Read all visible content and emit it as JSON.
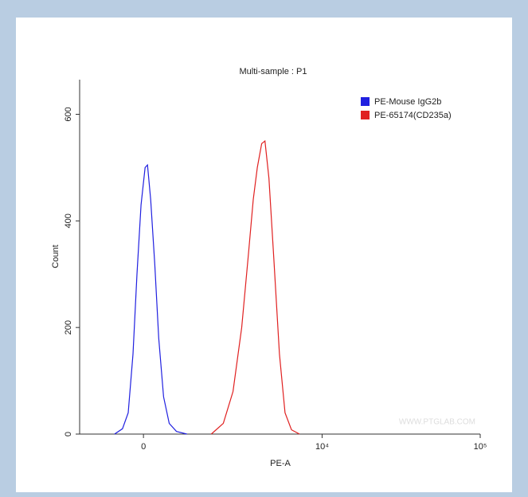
{
  "chart_data": {
    "type": "line",
    "title": "Multi-sample : P1",
    "x_label": "PE-A",
    "y_label": "Count",
    "watermark": "WWW.PTGLAB.COM",
    "xscale": "biexponential",
    "xlim": [
      -1600,
      100000
    ],
    "xticks": [
      0,
      {
        "value": 10000,
        "label": "10⁴"
      },
      {
        "value": 100000,
        "label": "10⁵"
      }
    ],
    "ylim": [
      0,
      665
    ],
    "yticks": [
      0,
      200,
      400,
      600
    ],
    "legend": "upper right",
    "series": [
      {
        "name": "PE-Mouse IgG2b",
        "color": "#2020e0",
        "x": [
          -650,
          -464,
          -336,
          -229,
          -141,
          -53,
          35,
          88,
          158,
          247,
          336,
          445,
          575,
          748,
          1012
        ],
        "values": [
          0,
          10,
          40,
          150,
          300,
          430,
          500,
          505,
          440,
          320,
          180,
          70,
          20,
          5,
          0
        ]
      },
      {
        "name": "PE-65174(CD235a)",
        "color": "#e02020",
        "x": [
          1729,
          2160,
          2552,
          2947,
          3293,
          3548,
          3778,
          4048,
          4256,
          4525,
          4871,
          5305,
          5774,
          6355,
          7164
        ],
        "values": [
          0,
          20,
          80,
          200,
          340,
          440,
          500,
          545,
          550,
          480,
          330,
          150,
          40,
          8,
          0
        ]
      }
    ]
  }
}
